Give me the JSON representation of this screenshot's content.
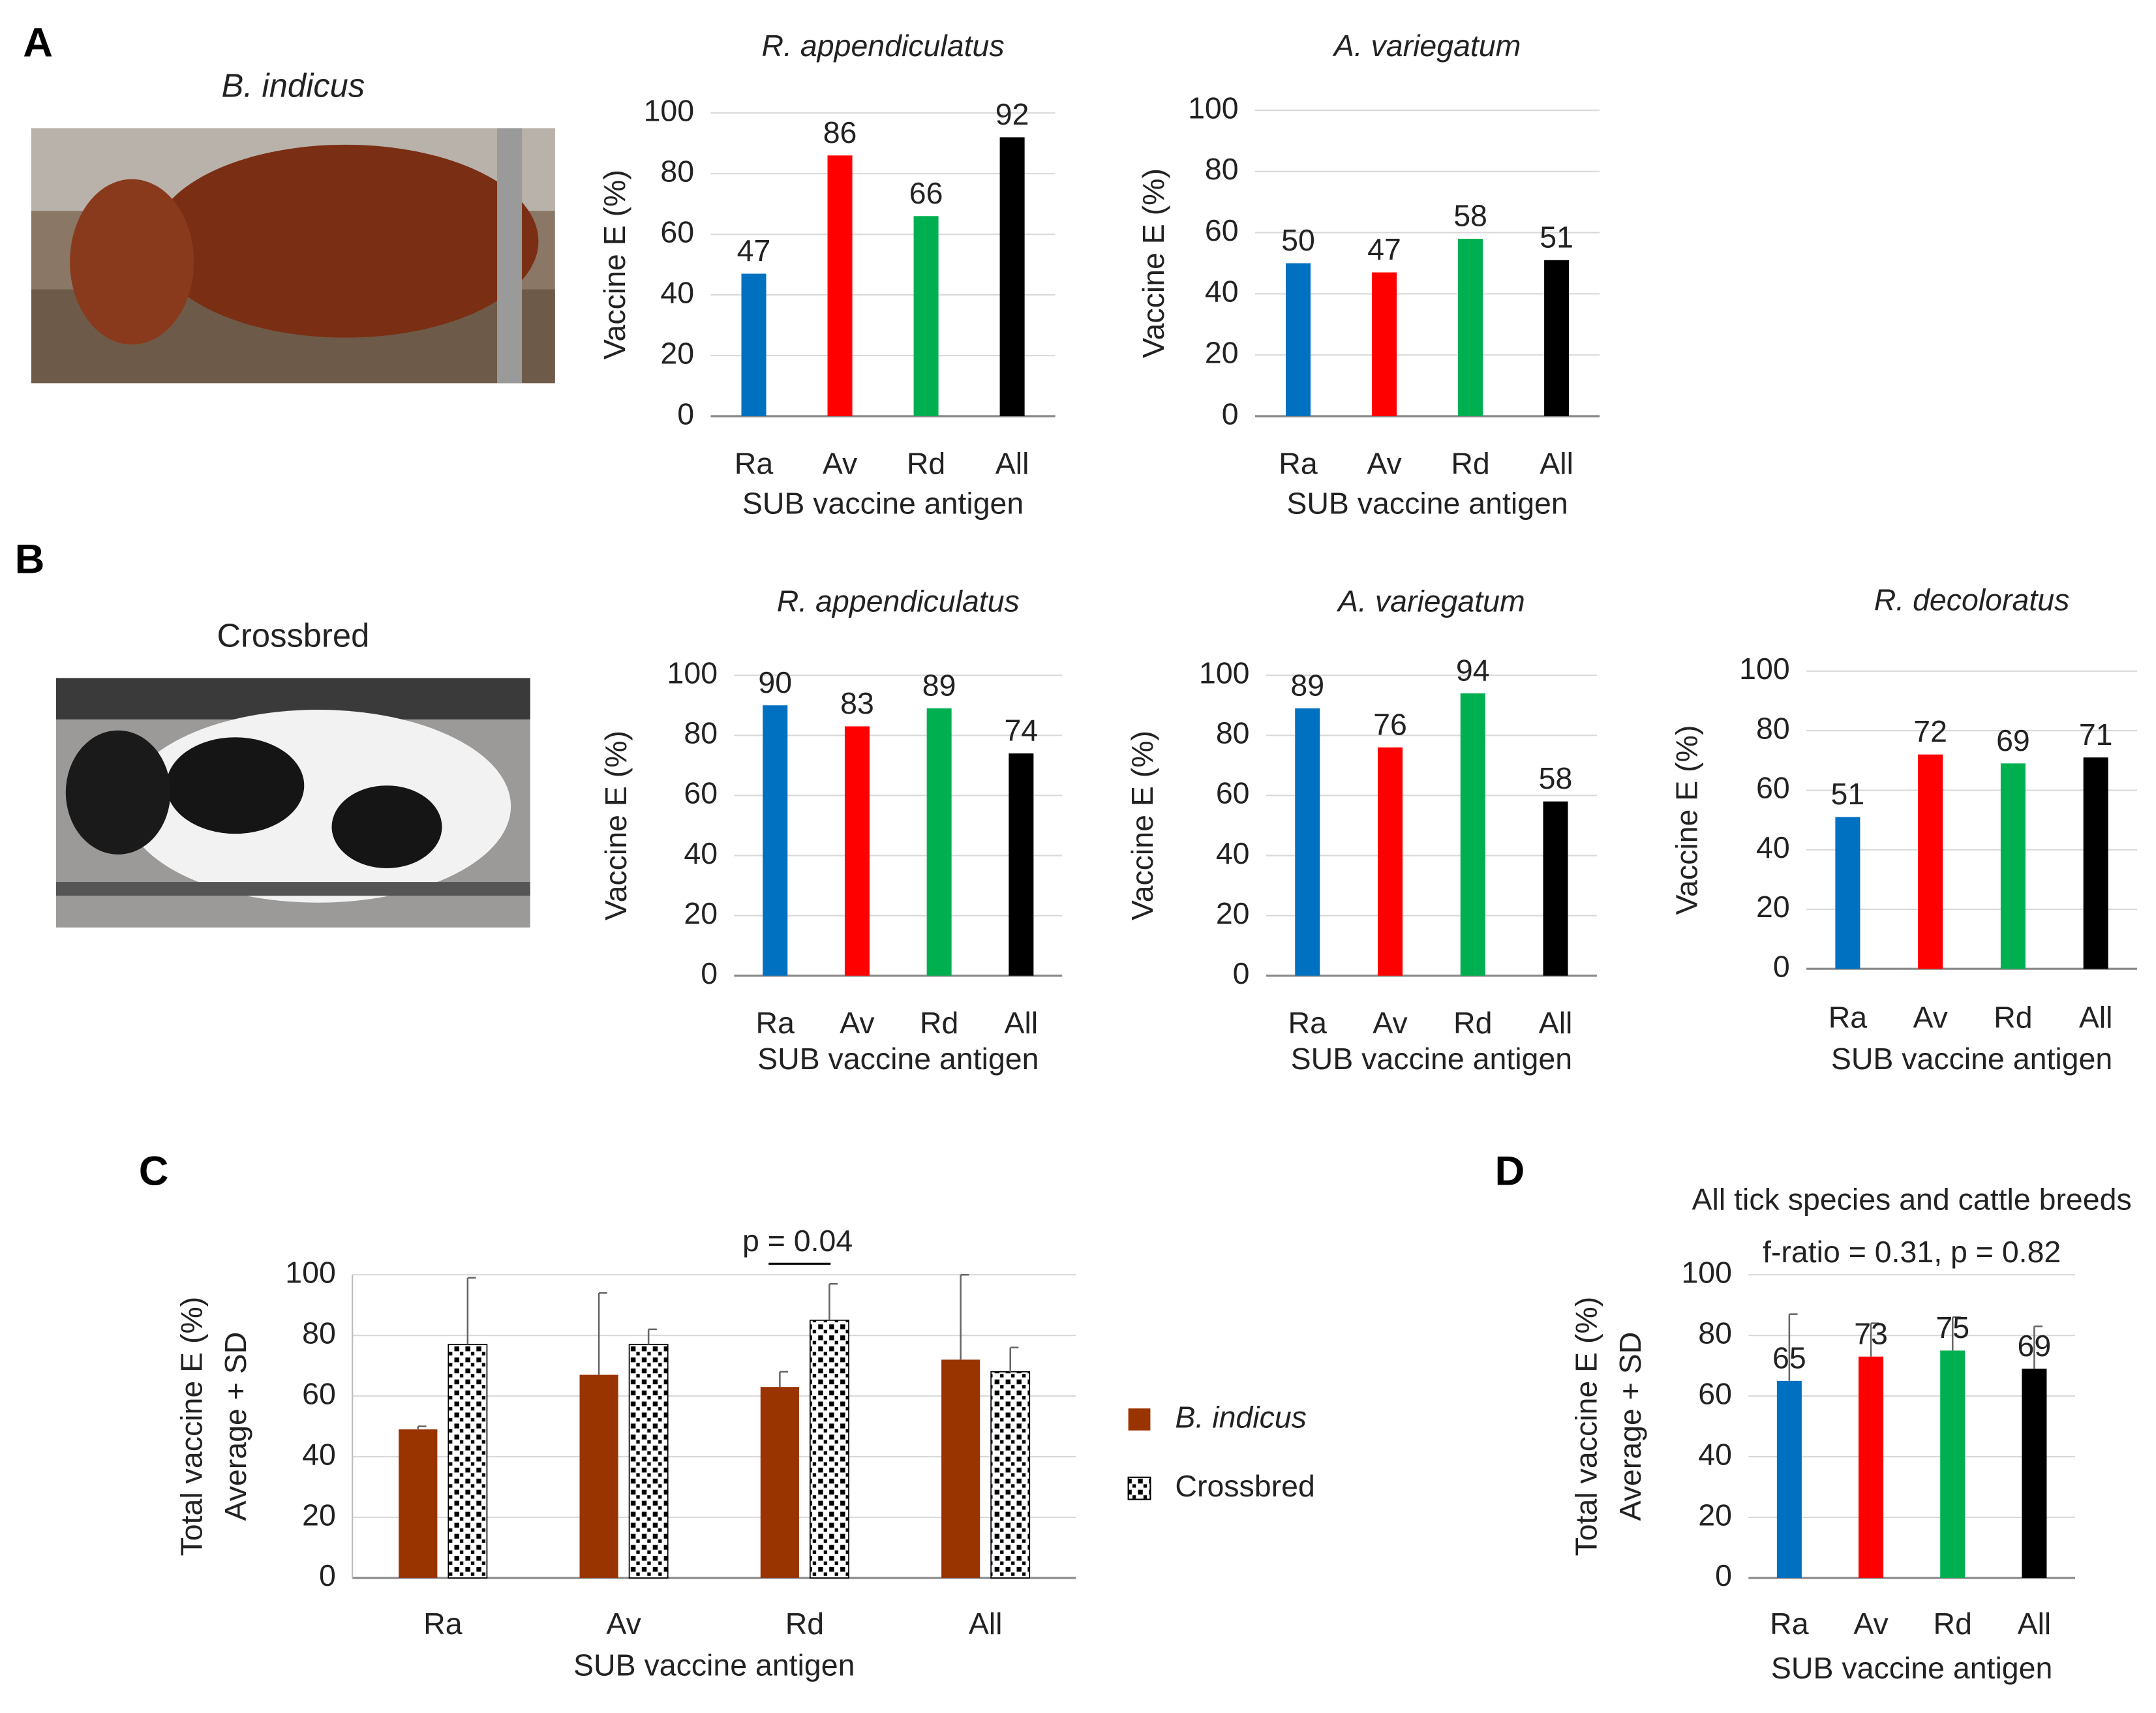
{
  "panel_labels": [
    "A",
    "B",
    "C",
    "D"
  ],
  "photos": [
    {
      "label": "B. indicus"
    },
    {
      "label": "Crossbred"
    }
  ],
  "chart_data": [
    {
      "type": "bar",
      "title": "R. appendiculatus",
      "ylabel": "Vaccine E (%)",
      "xlabel": "SUB vaccine antigen",
      "categories": [
        "Ra",
        "Av",
        "Rd",
        "All"
      ],
      "values": [
        47,
        86,
        66,
        92
      ],
      "colors": [
        "#0070c0",
        "#ff0000",
        "#00b050",
        "#000000"
      ],
      "ylim": [
        0,
        100
      ],
      "yticks": [
        0,
        20,
        40,
        60,
        80,
        100
      ],
      "grid": true
    },
    {
      "type": "bar",
      "title": "A. variegatum",
      "ylabel": "Vaccine E (%)",
      "xlabel": "SUB vaccine antigen",
      "categories": [
        "Ra",
        "Av",
        "Rd",
        "All"
      ],
      "values": [
        50,
        47,
        58,
        51
      ],
      "colors": [
        "#0070c0",
        "#ff0000",
        "#00b050",
        "#000000"
      ],
      "ylim": [
        0,
        100
      ],
      "yticks": [
        0,
        20,
        40,
        60,
        80,
        100
      ],
      "grid": true
    },
    {
      "type": "bar",
      "title": "R. appendiculatus",
      "ylabel": "Vaccine E (%)",
      "xlabel": "SUB vaccine antigen",
      "categories": [
        "Ra",
        "Av",
        "Rd",
        "All"
      ],
      "values": [
        90,
        83,
        89,
        74
      ],
      "colors": [
        "#0070c0",
        "#ff0000",
        "#00b050",
        "#000000"
      ],
      "ylim": [
        0,
        100
      ],
      "yticks": [
        0,
        20,
        40,
        60,
        80,
        100
      ],
      "grid": true
    },
    {
      "type": "bar",
      "title": "A. variegatum",
      "ylabel": "Vaccine E (%)",
      "xlabel": "SUB vaccine antigen",
      "categories": [
        "Ra",
        "Av",
        "Rd",
        "All"
      ],
      "values": [
        89,
        76,
        94,
        58
      ],
      "colors": [
        "#0070c0",
        "#ff0000",
        "#00b050",
        "#000000"
      ],
      "ylim": [
        0,
        100
      ],
      "yticks": [
        0,
        20,
        40,
        60,
        80,
        100
      ],
      "grid": true
    },
    {
      "type": "bar",
      "title": "R. decoloratus",
      "ylabel": "Vaccine E (%)",
      "xlabel": "SUB vaccine antigen",
      "categories": [
        "Ra",
        "Av",
        "Rd",
        "All"
      ],
      "values": [
        51,
        72,
        69,
        71
      ],
      "colors": [
        "#0070c0",
        "#ff0000",
        "#00b050",
        "#000000"
      ],
      "ylim": [
        0,
        100
      ],
      "yticks": [
        0,
        20,
        40,
        60,
        80,
        100
      ],
      "grid": true
    },
    {
      "type": "bar",
      "ylabel": [
        "Total vaccine E (%)",
        "Average + SD"
      ],
      "xlabel": "SUB vaccine antigen",
      "categories": [
        "Ra",
        "Av",
        "Rd",
        "All"
      ],
      "series": [
        {
          "name": "B. indicus",
          "color": "#993300",
          "values": [
            49,
            67,
            63,
            72
          ],
          "errors": [
            1,
            27,
            5,
            28
          ]
        },
        {
          "name": "Crossbred",
          "color": "#000000",
          "pattern": "dots",
          "values": [
            77,
            77,
            85,
            68
          ],
          "errors": [
            22,
            5,
            12,
            8
          ]
        }
      ],
      "annotation": "p = 0.04",
      "ylim": [
        0,
        100
      ],
      "yticks": [
        0,
        20,
        40,
        60,
        80,
        100
      ],
      "grid": true,
      "legend": "right"
    },
    {
      "type": "bar",
      "title": "All tick species and cattle breeds",
      "subtitle": "f-ratio = 0.31, p = 0.82",
      "ylabel": [
        "Total vaccine E (%)",
        "Average + SD"
      ],
      "xlabel": "SUB vaccine antigen",
      "categories": [
        "Ra",
        "Av",
        "Rd",
        "All"
      ],
      "values": [
        65,
        73,
        75,
        69
      ],
      "errors": [
        22,
        11,
        11,
        14
      ],
      "colors": [
        "#0070c0",
        "#ff0000",
        "#00b050",
        "#000000"
      ],
      "ylim": [
        0,
        100
      ],
      "yticks": [
        0,
        20,
        40,
        60,
        80,
        100
      ],
      "grid": true
    }
  ]
}
